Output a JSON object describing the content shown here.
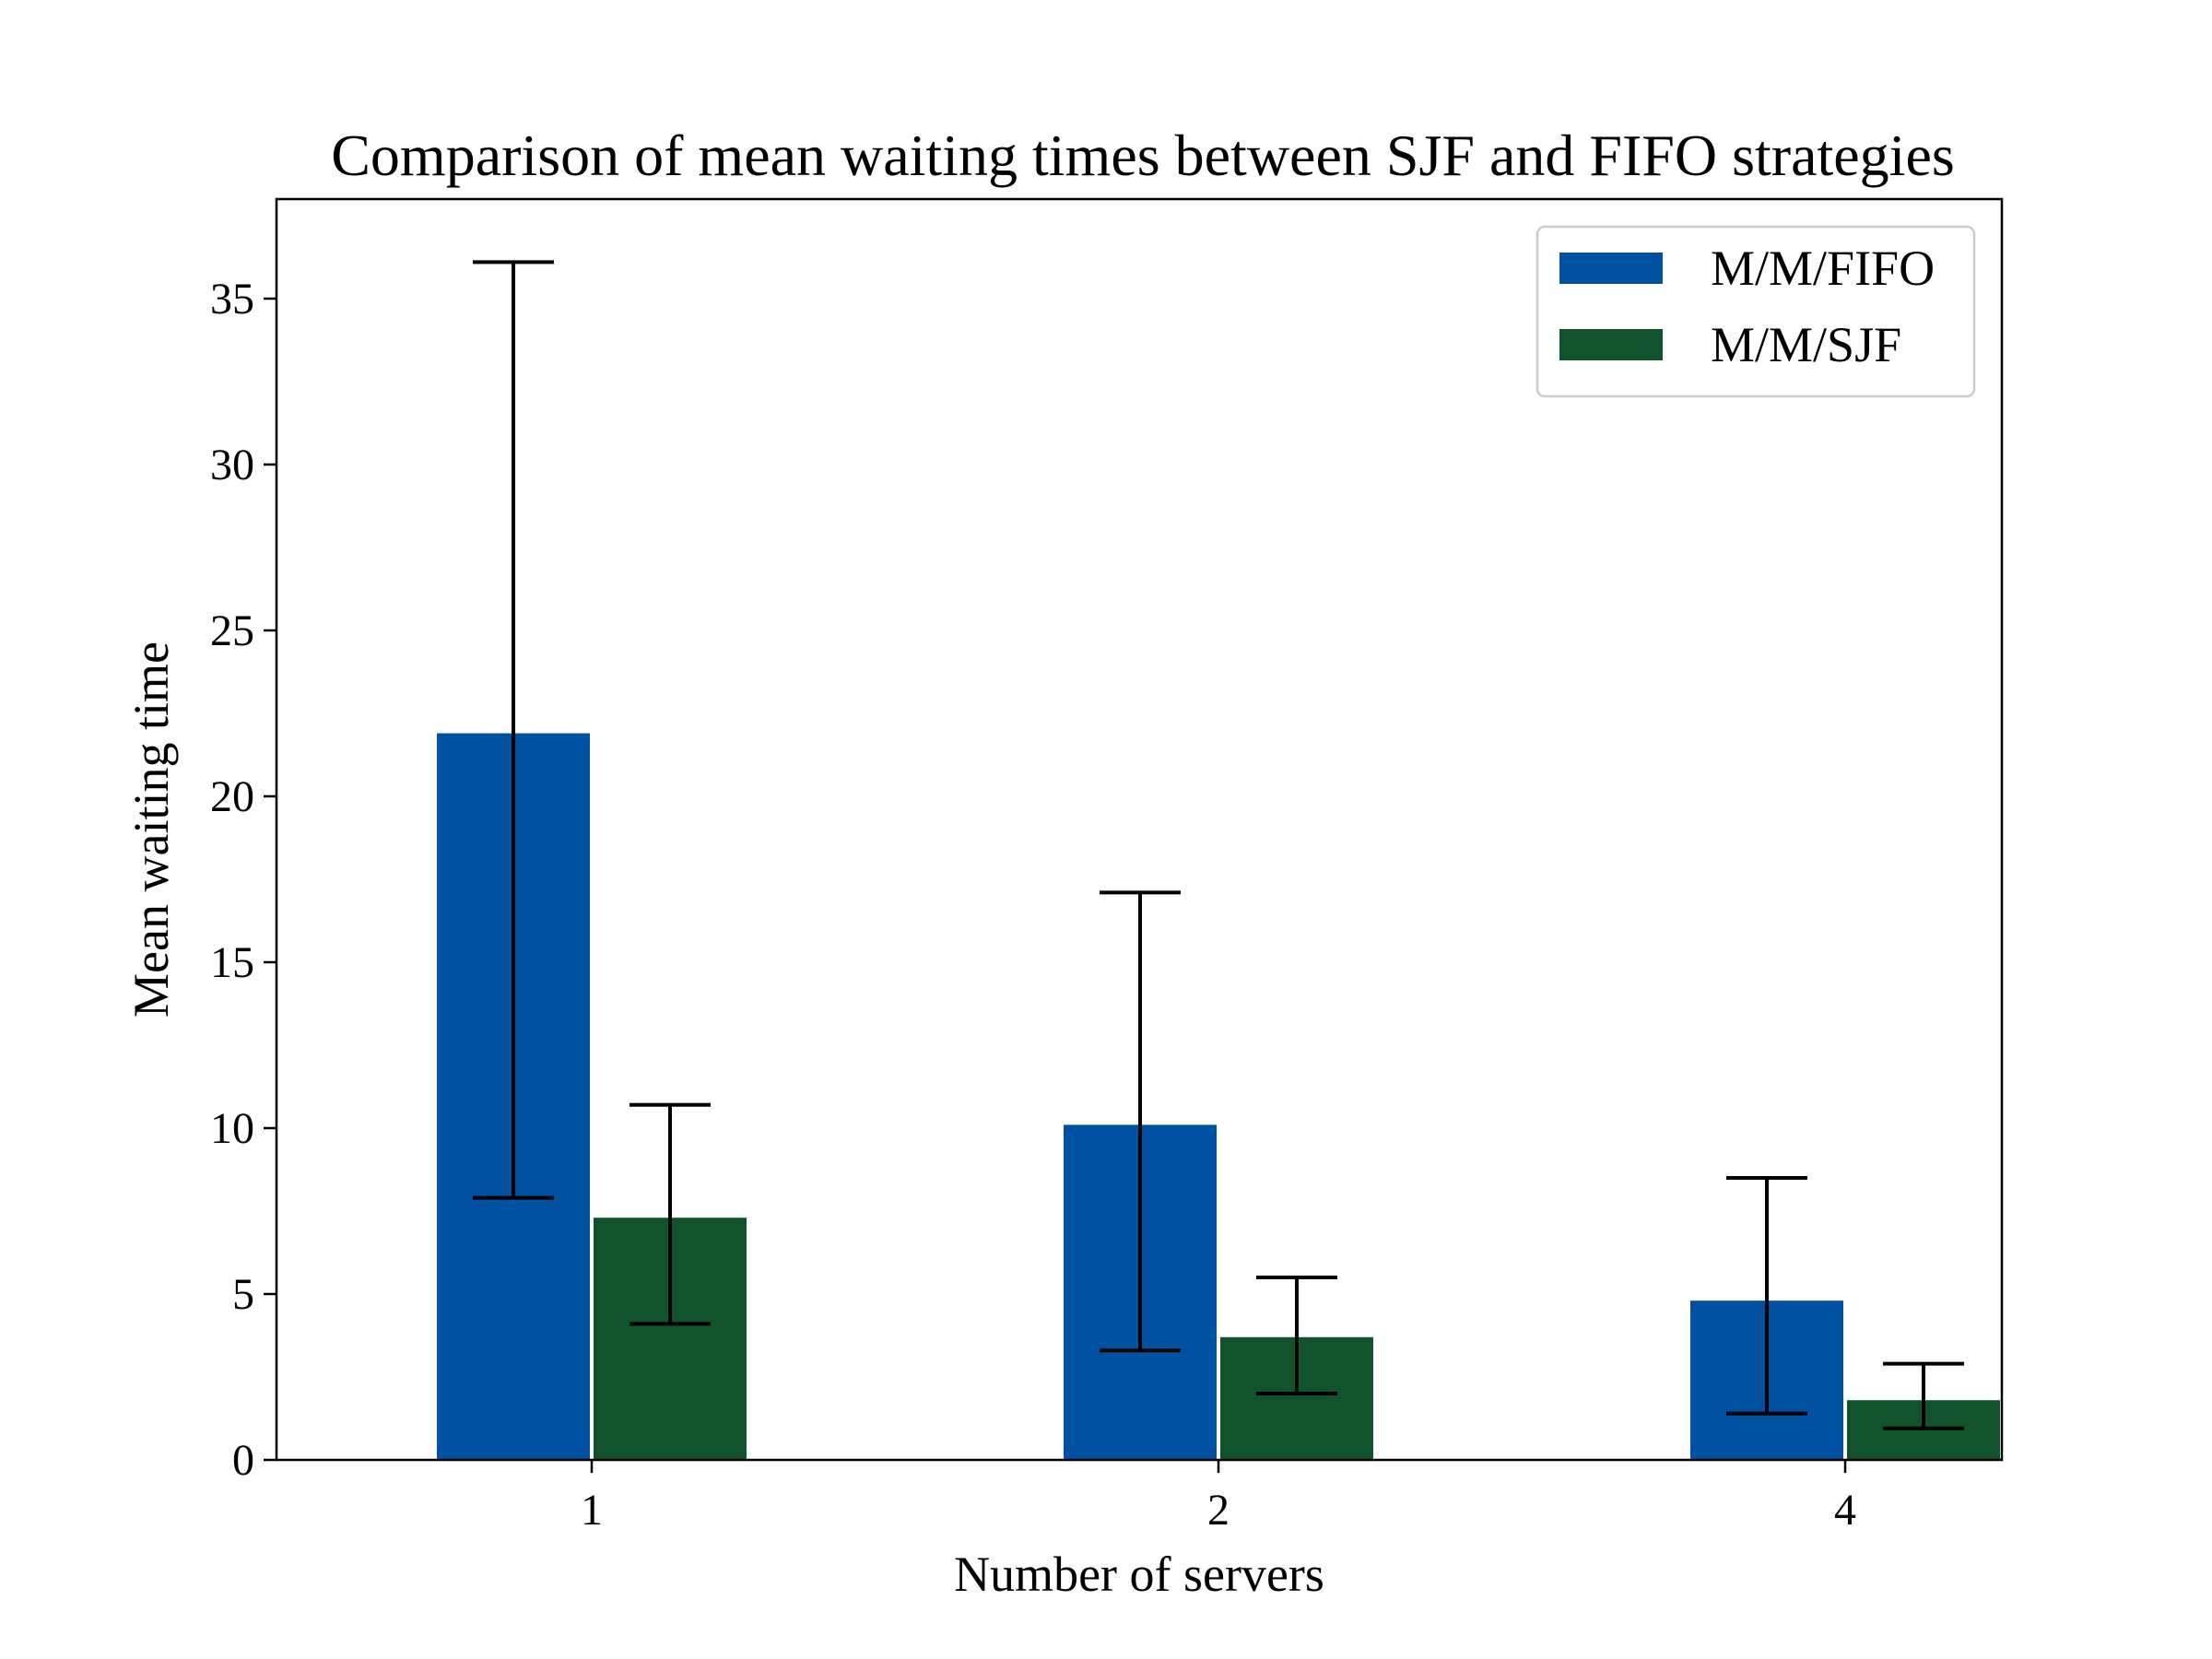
{
  "chart_data": {
    "type": "bar",
    "title": "Comparison of mean waiting times between SJF and FIFO strategies",
    "xlabel": "Number of servers",
    "ylabel": "Mean waiting time",
    "categories": [
      "1",
      "2",
      "4"
    ],
    "ylim": [
      0,
      38
    ],
    "yticks": [
      0,
      5,
      10,
      15,
      20,
      25,
      30,
      35
    ],
    "grid": false,
    "legend_position": "top-right",
    "series": [
      {
        "name": "M/M/FIFO",
        "color": "#0051a2",
        "values": [
          21.9,
          10.1,
          4.8
        ],
        "error_low": [
          7.9,
          3.3,
          1.4
        ],
        "error_high": [
          36.1,
          17.1,
          8.5
        ]
      },
      {
        "name": "M/M/SJF",
        "color": "#10532d",
        "values": [
          7.3,
          3.7,
          1.8
        ],
        "error_low": [
          4.1,
          2.0,
          0.95
        ],
        "error_high": [
          10.7,
          5.5,
          2.9
        ]
      }
    ]
  }
}
